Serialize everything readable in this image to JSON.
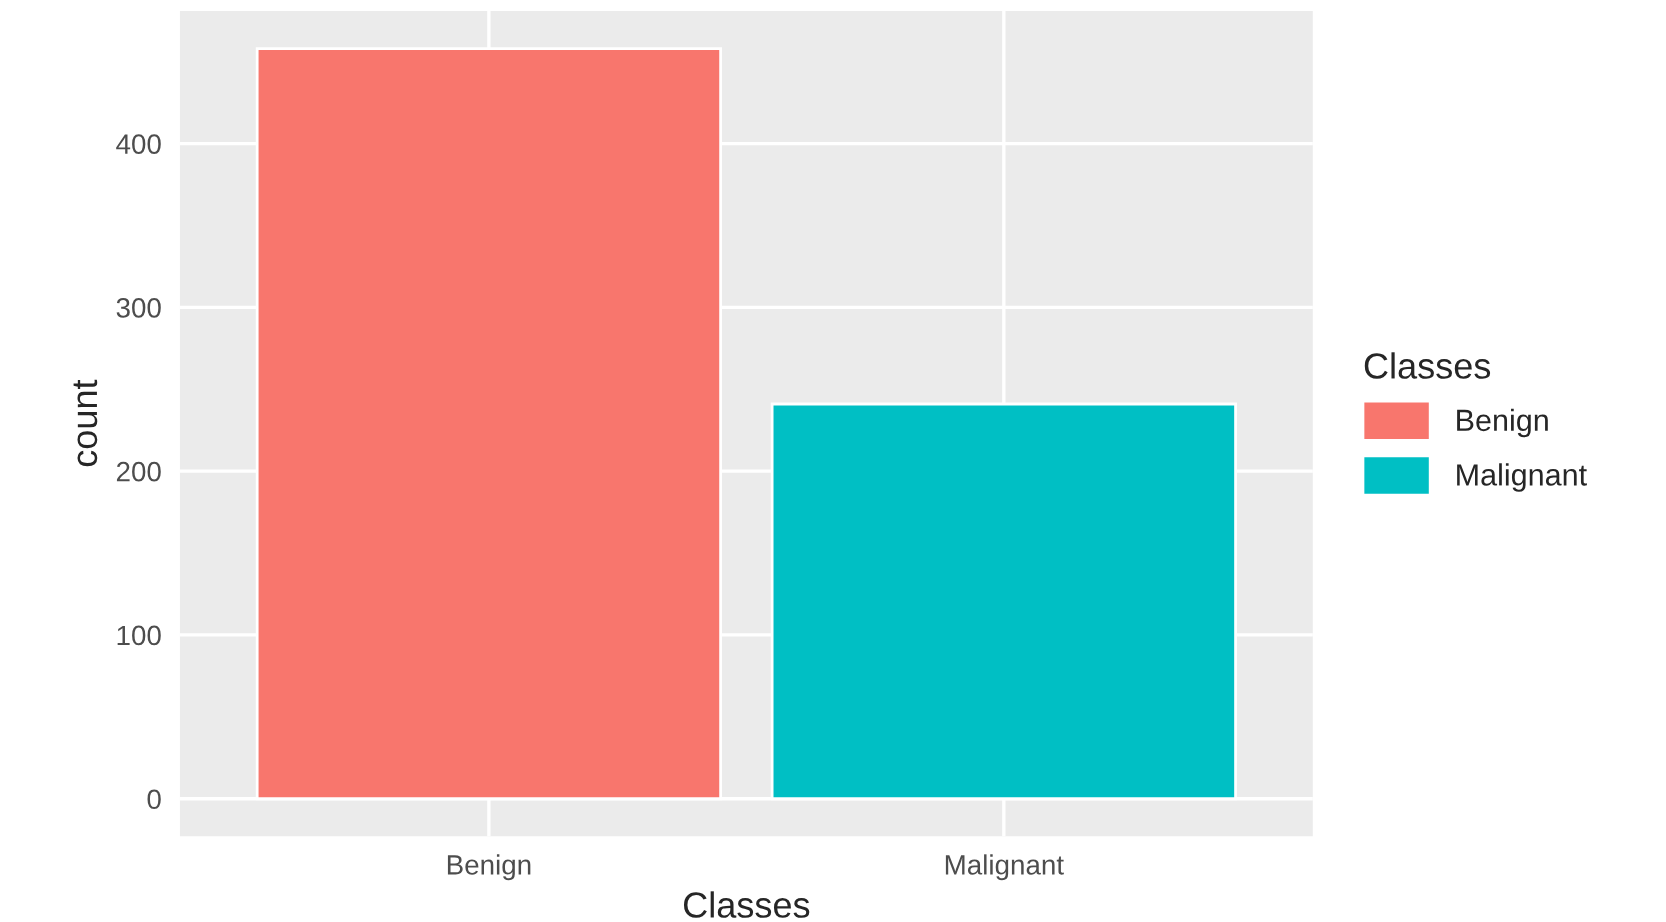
{
  "chart_data": {
    "type": "bar",
    "xlabel": "Classes",
    "ylabel": "count",
    "legend_title": "Classes",
    "categories": [
      "Benign",
      "Malignant"
    ],
    "series": [
      {
        "name": "Benign",
        "color": "#f8766d",
        "values": [
          458,
          null
        ]
      },
      {
        "name": "Malignant",
        "color": "#00bfc4",
        "values": [
          null,
          241
        ]
      }
    ],
    "ylim": [
      -22.9,
      480.9
    ],
    "yticks": [
      0,
      100,
      200,
      300,
      400
    ],
    "grid": true,
    "legend": "right"
  }
}
